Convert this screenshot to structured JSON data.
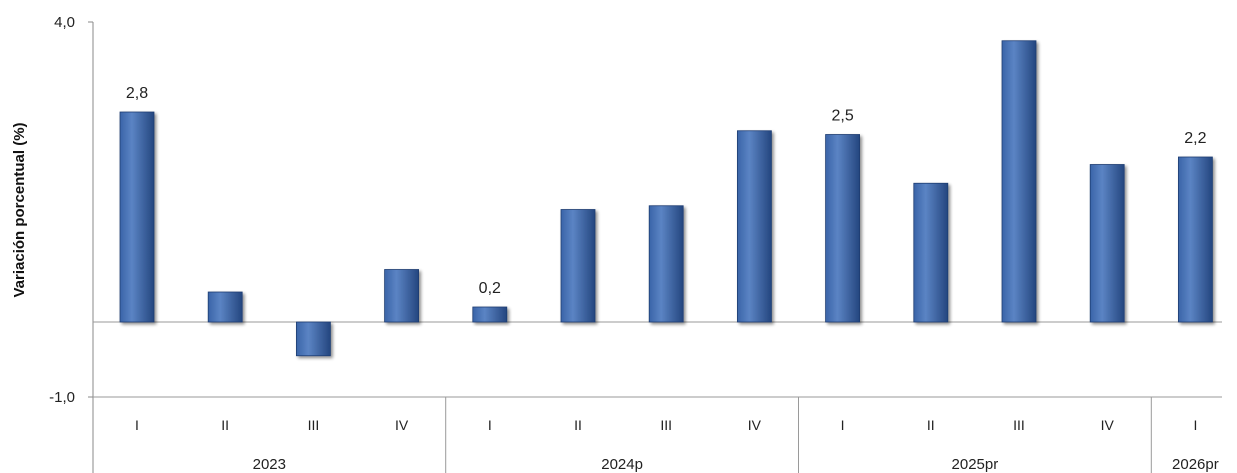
{
  "chart_data": {
    "type": "bar",
    "ylabel": "Variación porcentual (%)",
    "ylim": [
      -1.0,
      4.0
    ],
    "y_ticks": [
      "4,0",
      "-1,0"
    ],
    "y_tick_values": [
      4.0,
      -1.0
    ],
    "grid": false,
    "legend": "none",
    "bar_color": "#2F5597",
    "categories": [
      "I",
      "II",
      "III",
      "IV",
      "I",
      "II",
      "III",
      "IV",
      "I",
      "II",
      "III",
      "IV",
      "I"
    ],
    "groups": [
      {
        "label": "2023",
        "count": 4
      },
      {
        "label": "2024p",
        "count": 4
      },
      {
        "label": "2025pr",
        "count": 4
      },
      {
        "label": "2026pr",
        "count": 1
      }
    ],
    "values": [
      2.8,
      0.4,
      -0.45,
      0.7,
      0.2,
      1.5,
      1.55,
      2.55,
      2.5,
      1.85,
      3.75,
      2.1,
      2.2
    ],
    "data_labels": [
      "2,8",
      "",
      "",
      "",
      "0,2",
      "",
      "",
      "",
      "2,5",
      "",
      "",
      "",
      "2,2"
    ]
  }
}
